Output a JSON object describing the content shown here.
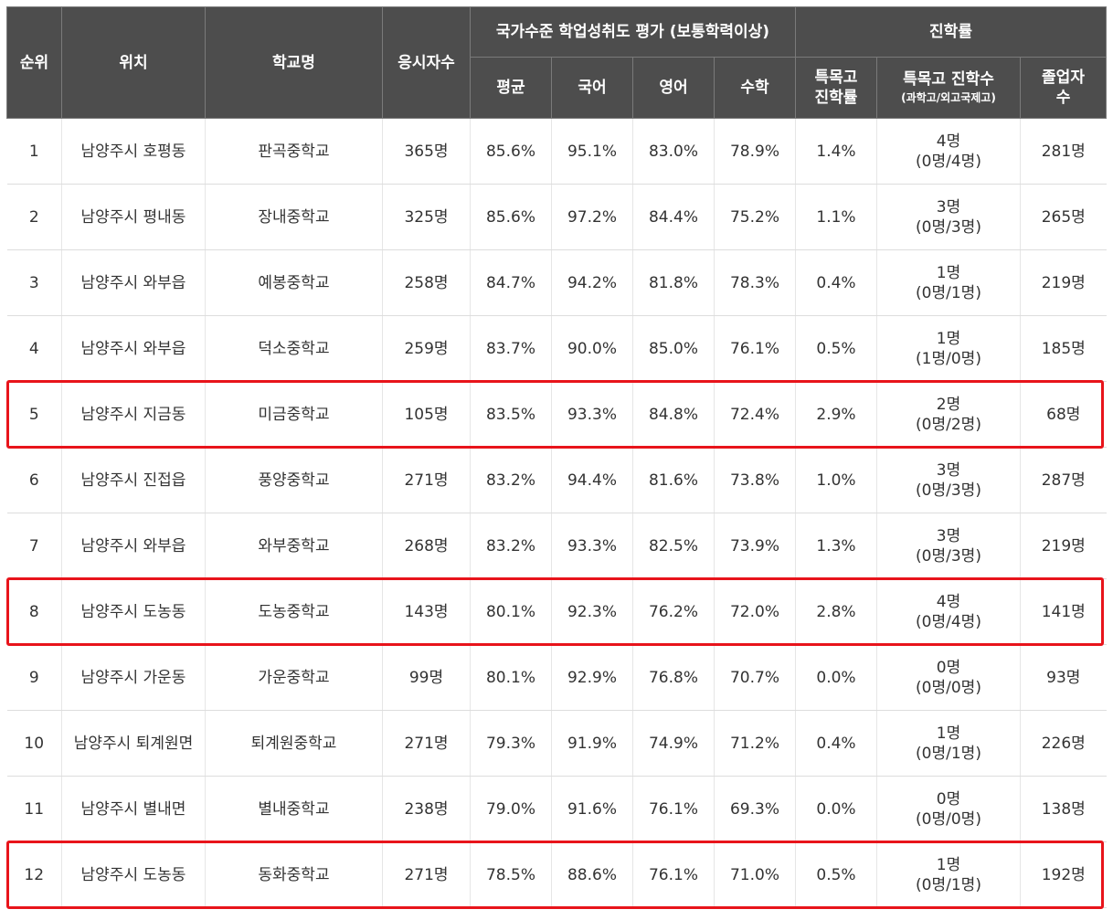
{
  "headers": {
    "rank": "순위",
    "location": "위치",
    "school": "학교명",
    "examinees": "응시자수",
    "achievement_group": "국가수준 학업성취도 평가 (보통학력이상)",
    "avg": "평균",
    "korean": "국어",
    "english": "영어",
    "math": "수학",
    "advancement_group": "진학률",
    "special_rate_line1": "특목고",
    "special_rate_line2": "진학률",
    "special_count_line1": "특목고 진학수",
    "special_count_line2": "(과학고/외고국제고)",
    "graduates_line1": "졸업자",
    "graduates_line2": "수"
  },
  "rows": [
    {
      "rank": "1",
      "location": "남양주시 호평동",
      "school": "판곡중학교",
      "examinees": "365명",
      "avg": "85.6%",
      "korean": "95.1%",
      "english": "83.0%",
      "math": "78.9%",
      "special_rate": "1.4%",
      "special_count": "4명",
      "special_detail": "(0명/4명)",
      "graduates": "281명"
    },
    {
      "rank": "2",
      "location": "남양주시 평내동",
      "school": "장내중학교",
      "examinees": "325명",
      "avg": "85.6%",
      "korean": "97.2%",
      "english": "84.4%",
      "math": "75.2%",
      "special_rate": "1.1%",
      "special_count": "3명",
      "special_detail": "(0명/3명)",
      "graduates": "265명"
    },
    {
      "rank": "3",
      "location": "남양주시 와부읍",
      "school": "예봉중학교",
      "examinees": "258명",
      "avg": "84.7%",
      "korean": "94.2%",
      "english": "81.8%",
      "math": "78.3%",
      "special_rate": "0.4%",
      "special_count": "1명",
      "special_detail": "(0명/1명)",
      "graduates": "219명"
    },
    {
      "rank": "4",
      "location": "남양주시 와부읍",
      "school": "덕소중학교",
      "examinees": "259명",
      "avg": "83.7%",
      "korean": "90.0%",
      "english": "85.0%",
      "math": "76.1%",
      "special_rate": "0.5%",
      "special_count": "1명",
      "special_detail": "(1명/0명)",
      "graduates": "185명"
    },
    {
      "rank": "5",
      "location": "남양주시 지금동",
      "school": "미금중학교",
      "examinees": "105명",
      "avg": "83.5%",
      "korean": "93.3%",
      "english": "84.8%",
      "math": "72.4%",
      "special_rate": "2.9%",
      "special_count": "2명",
      "special_detail": "(0명/2명)",
      "graduates": "68명"
    },
    {
      "rank": "6",
      "location": "남양주시 진접읍",
      "school": "풍양중학교",
      "examinees": "271명",
      "avg": "83.2%",
      "korean": "94.4%",
      "english": "81.6%",
      "math": "73.8%",
      "special_rate": "1.0%",
      "special_count": "3명",
      "special_detail": "(0명/3명)",
      "graduates": "287명"
    },
    {
      "rank": "7",
      "location": "남양주시 와부읍",
      "school": "와부중학교",
      "examinees": "268명",
      "avg": "83.2%",
      "korean": "93.3%",
      "english": "82.5%",
      "math": "73.9%",
      "special_rate": "1.3%",
      "special_count": "3명",
      "special_detail": "(0명/3명)",
      "graduates": "219명"
    },
    {
      "rank": "8",
      "location": "남양주시 도농동",
      "school": "도농중학교",
      "examinees": "143명",
      "avg": "80.1%",
      "korean": "92.3%",
      "english": "76.2%",
      "math": "72.0%",
      "special_rate": "2.8%",
      "special_count": "4명",
      "special_detail": "(0명/4명)",
      "graduates": "141명"
    },
    {
      "rank": "9",
      "location": "남양주시 가운동",
      "school": "가운중학교",
      "examinees": "99명",
      "avg": "80.1%",
      "korean": "92.9%",
      "english": "76.8%",
      "math": "70.7%",
      "special_rate": "0.0%",
      "special_count": "0명",
      "special_detail": "(0명/0명)",
      "graduates": "93명"
    },
    {
      "rank": "10",
      "location": "남양주시 퇴계원면",
      "school": "퇴계원중학교",
      "examinees": "271명",
      "avg": "79.3%",
      "korean": "91.9%",
      "english": "74.9%",
      "math": "71.2%",
      "special_rate": "0.4%",
      "special_count": "1명",
      "special_detail": "(0명/1명)",
      "graduates": "226명"
    },
    {
      "rank": "11",
      "location": "남양주시 별내면",
      "school": "별내중학교",
      "examinees": "238명",
      "avg": "79.0%",
      "korean": "91.6%",
      "english": "76.1%",
      "math": "69.3%",
      "special_rate": "0.0%",
      "special_count": "0명",
      "special_detail": "(0명/0명)",
      "graduates": "138명"
    },
    {
      "rank": "12",
      "location": "남양주시 도농동",
      "school": "동화중학교",
      "examinees": "271명",
      "avg": "78.5%",
      "korean": "88.6%",
      "english": "76.1%",
      "math": "71.0%",
      "special_rate": "0.5%",
      "special_count": "1명",
      "special_detail": "(0명/1명)",
      "graduates": "192명"
    }
  ],
  "highlight_colour": "#e8141b",
  "highlighted_ranks": [
    "5",
    "8",
    "12"
  ]
}
